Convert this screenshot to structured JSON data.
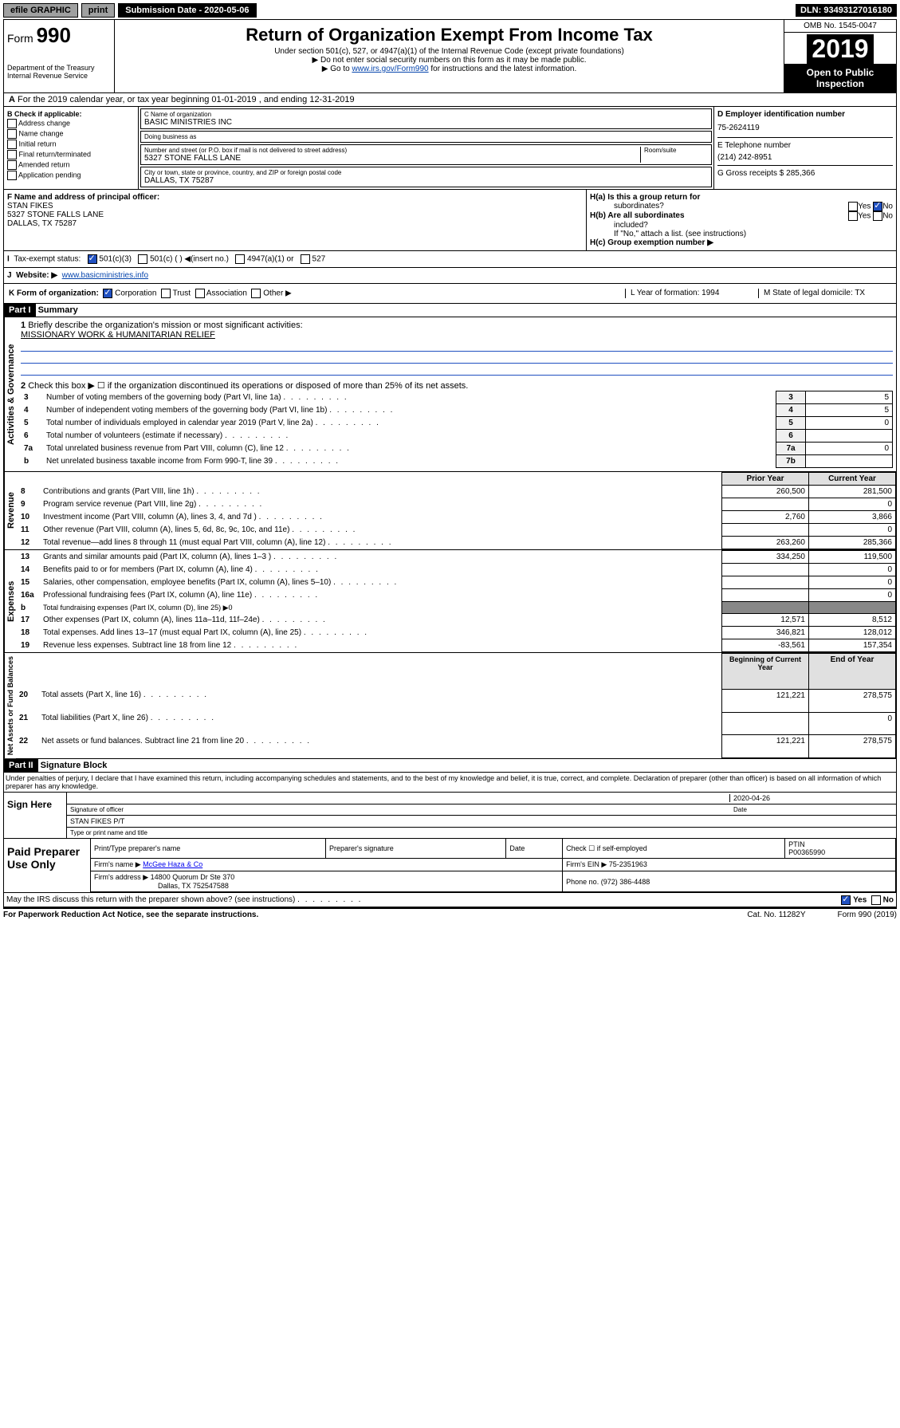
{
  "topbar": {
    "efile": "efile GRAPHIC",
    "print": "print",
    "subdate_lbl": "Submission Date - 2020-05-06",
    "dln": "DLN: 93493127016180"
  },
  "header": {
    "form": "Form",
    "num": "990",
    "title": "Return of Organization Exempt From Income Tax",
    "sub1": "Under section 501(c), 527, or 4947(a)(1) of the Internal Revenue Code (except private foundations)",
    "sub2": "▶ Do not enter social security numbers on this form as it may be made public.",
    "sub3_pre": "▶ Go to ",
    "sub3_link": "www.irs.gov/Form990",
    "sub3_post": " for instructions and the latest information.",
    "dept": "Department of the Treasury",
    "irs": "Internal Revenue Service",
    "omb": "OMB No. 1545-0047",
    "year": "2019",
    "open": "Open to Public",
    "insp": "Inspection"
  },
  "A": {
    "text": "For the 2019 calendar year, or tax year beginning 01-01-2019   , and ending 12-31-2019"
  },
  "B": {
    "title": "B Check if applicable:",
    "items": [
      "Address change",
      "Name change",
      "Initial return",
      "Final return/terminated",
      "Amended return",
      "Application pending"
    ]
  },
  "C": {
    "name_lbl": "C Name of organization",
    "name": "BASIC MINISTRIES INC",
    "dba_lbl": "Doing business as",
    "dba": "",
    "addr_lbl": "Number and street (or P.O. box if mail is not delivered to street address)",
    "room_lbl": "Room/suite",
    "addr": "5327 STONE FALLS LANE",
    "city_lbl": "City or town, state or province, country, and ZIP or foreign postal code",
    "city": "DALLAS, TX  75287"
  },
  "D": {
    "lbl": "D Employer identification number",
    "val": "75-2624119"
  },
  "E": {
    "lbl": "E Telephone number",
    "val": "(214) 242-8951"
  },
  "G": {
    "lbl": "G Gross receipts $ 285,366"
  },
  "F": {
    "lbl": "F  Name and address of principal officer:",
    "name": "STAN FIKES",
    "addr1": "5327 STONE FALLS LANE",
    "addr2": "DALLAS, TX  75287"
  },
  "H": {
    "a": "H(a)  Is this a group return for",
    "a2": "subordinates?",
    "a_yes": "Yes",
    "a_no": "No",
    "b": "H(b)  Are all subordinates",
    "b2": "included?",
    "b_yes": "Yes",
    "b_no": "No",
    "b3": "If \"No,\" attach a list. (see instructions)",
    "c": "H(c)  Group exemption number ▶"
  },
  "I": {
    "lbl": "Tax-exempt status:",
    "o1": "501(c)(3)",
    "o2": "501(c) (  ) ◀(insert no.)",
    "o3": "4947(a)(1) or",
    "o4": "527"
  },
  "J": {
    "lbl": "Website: ▶",
    "val": "www.basicministries.info"
  },
  "K": {
    "lbl": "K Form of organization:",
    "o1": "Corporation",
    "o2": "Trust",
    "o3": "Association",
    "o4": "Other ▶"
  },
  "L": {
    "lbl": "L Year of formation: 1994"
  },
  "M": {
    "lbl": "M State of legal domicile: TX"
  },
  "partI": {
    "hdr": "Part I",
    "title": "Summary"
  },
  "summary": {
    "l1": "Briefly describe the organization's mission or most significant activities:",
    "mission": "MISSIONARY WORK & HUMANITARIAN RELIEF",
    "l2": "Check this box ▶ ☐  if the organization discontinued its operations or disposed of more than 25% of its net assets.",
    "rows1": [
      {
        "n": "3",
        "t": "Number of voting members of the governing body (Part VI, line 1a)",
        "c": "3",
        "v": "5"
      },
      {
        "n": "4",
        "t": "Number of independent voting members of the governing body (Part VI, line 1b)",
        "c": "4",
        "v": "5"
      },
      {
        "n": "5",
        "t": "Total number of individuals employed in calendar year 2019 (Part V, line 2a)",
        "c": "5",
        "v": "0"
      },
      {
        "n": "6",
        "t": "Total number of volunteers (estimate if necessary)",
        "c": "6",
        "v": ""
      },
      {
        "n": "7a",
        "t": "Total unrelated business revenue from Part VIII, column (C), line 12",
        "c": "7a",
        "v": "0"
      },
      {
        "n": "b",
        "t": "Net unrelated business taxable income from Form 990-T, line 39",
        "c": "7b",
        "v": ""
      }
    ],
    "hdr_prior": "Prior Year",
    "hdr_curr": "Current Year",
    "rev": [
      {
        "n": "8",
        "t": "Contributions and grants (Part VIII, line 1h)",
        "p": "260,500",
        "c": "281,500"
      },
      {
        "n": "9",
        "t": "Program service revenue (Part VIII, line 2g)",
        "p": "",
        "c": "0"
      },
      {
        "n": "10",
        "t": "Investment income (Part VIII, column (A), lines 3, 4, and 7d )",
        "p": "2,760",
        "c": "3,866"
      },
      {
        "n": "11",
        "t": "Other revenue (Part VIII, column (A), lines 5, 6d, 8c, 9c, 10c, and 11e)",
        "p": "",
        "c": "0"
      },
      {
        "n": "12",
        "t": "Total revenue—add lines 8 through 11 (must equal Part VIII, column (A), line 12)",
        "p": "263,260",
        "c": "285,366"
      }
    ],
    "exp": [
      {
        "n": "13",
        "t": "Grants and similar amounts paid (Part IX, column (A), lines 1–3 )",
        "p": "334,250",
        "c": "119,500"
      },
      {
        "n": "14",
        "t": "Benefits paid to or for members (Part IX, column (A), line 4)",
        "p": "",
        "c": "0"
      },
      {
        "n": "15",
        "t": "Salaries, other compensation, employee benefits (Part IX, column (A), lines 5–10)",
        "p": "",
        "c": "0"
      },
      {
        "n": "16a",
        "t": "Professional fundraising fees (Part IX, column (A), line 11e)",
        "p": "",
        "c": "0"
      },
      {
        "n": "b",
        "t": "Total fundraising expenses (Part IX, column (D), line 25) ▶0",
        "p": null,
        "c": null
      },
      {
        "n": "17",
        "t": "Other expenses (Part IX, column (A), lines 11a–11d, 11f–24e)",
        "p": "12,571",
        "c": "8,512"
      },
      {
        "n": "18",
        "t": "Total expenses. Add lines 13–17 (must equal Part IX, column (A), line 25)",
        "p": "346,821",
        "c": "128,012"
      },
      {
        "n": "19",
        "t": "Revenue less expenses. Subtract line 18 from line 12",
        "p": "-83,561",
        "c": "157,354"
      }
    ],
    "hdr_beg": "Beginning of Current Year",
    "hdr_end": "End of Year",
    "net": [
      {
        "n": "20",
        "t": "Total assets (Part X, line 16)",
        "p": "121,221",
        "c": "278,575"
      },
      {
        "n": "21",
        "t": "Total liabilities (Part X, line 26)",
        "p": "",
        "c": "0"
      },
      {
        "n": "22",
        "t": "Net assets or fund balances. Subtract line 21 from line 20",
        "p": "121,221",
        "c": "278,575"
      }
    ],
    "side1": "Activities & Governance",
    "side2": "Revenue",
    "side3": "Expenses",
    "side4": "Net Assets or Fund Balances"
  },
  "partII": {
    "hdr": "Part II",
    "title": "Signature Block",
    "decl": "Under penalties of perjury, I declare that I have examined this return, including accompanying schedules and statements, and to the best of my knowledge and belief, it is true, correct, and complete. Declaration of preparer (other than officer) is based on all information of which preparer has any knowledge."
  },
  "sign": {
    "l": "Sign Here",
    "sigoff": "Signature of officer",
    "date": "2020-04-26",
    "datel": "Date",
    "name": "STAN FIKES P/T",
    "namel": "Type or print name and title"
  },
  "paid": {
    "l": "Paid Preparer Use Only",
    "h1": "Print/Type preparer's name",
    "h2": "Preparer's signature",
    "h3": "Date",
    "h4": "Check ☐ if self-employed",
    "h5": "PTIN",
    "ptin": "P00365990",
    "firm_lbl": "Firm's name   ▶",
    "firm": "McGee Haza & Co",
    "ein_lbl": "Firm's EIN ▶ 75-2351963",
    "addr_lbl": "Firm's address ▶",
    "addr1": "14800 Quorum Dr Ste 370",
    "addr2": "Dallas, TX  752547588",
    "phone_lbl": "Phone no. (972) 386-4488"
  },
  "discuss": {
    "t": "May the IRS discuss this return with the preparer shown above? (see instructions)",
    "yes": "Yes",
    "no": "No"
  },
  "footer": {
    "l": "For Paperwork Reduction Act Notice, see the separate instructions.",
    "c": "Cat. No. 11282Y",
    "r": "Form 990 (2019)"
  }
}
